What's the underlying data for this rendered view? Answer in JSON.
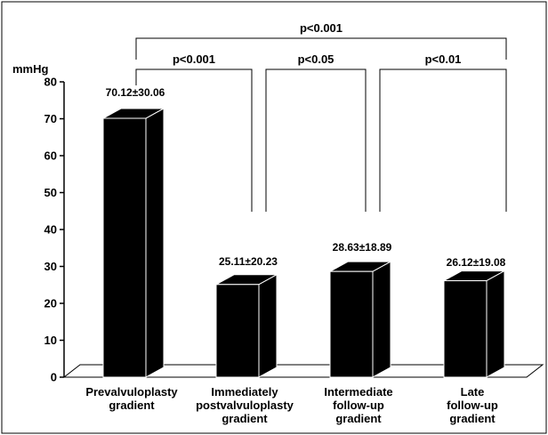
{
  "chart_data": {
    "type": "bar",
    "title": "",
    "xlabel": "",
    "ylabel": "mmHg",
    "ylim": [
      0,
      80
    ],
    "yticks": [
      0,
      10,
      20,
      30,
      40,
      50,
      60,
      70,
      80
    ],
    "grid": false,
    "categories": [
      [
        "Prevalvuloplasty",
        "gradient"
      ],
      [
        "Immediately",
        "postvalvuloplasty",
        "gradient"
      ],
      [
        "Intermediate",
        "follow-up",
        "gradient"
      ],
      [
        "Late",
        "follow-up",
        "gradient"
      ]
    ],
    "values": [
      70.12,
      25.11,
      28.63,
      26.12
    ],
    "value_labels": [
      "70.12±30.06",
      "25.11±20.23",
      "28.63±18.89",
      "26.12±19.08"
    ],
    "bar_color": "#000000",
    "significance": [
      {
        "from": 0,
        "to": 3,
        "label": "p<0.001",
        "level": 2
      },
      {
        "from": 0,
        "to": 1,
        "label": "p<0.001",
        "level": 1
      },
      {
        "from": 1,
        "to": 2,
        "label": "p<0.05",
        "level": 1
      },
      {
        "from": 2,
        "to": 3,
        "label": "p<0.01",
        "level": 1
      }
    ]
  }
}
